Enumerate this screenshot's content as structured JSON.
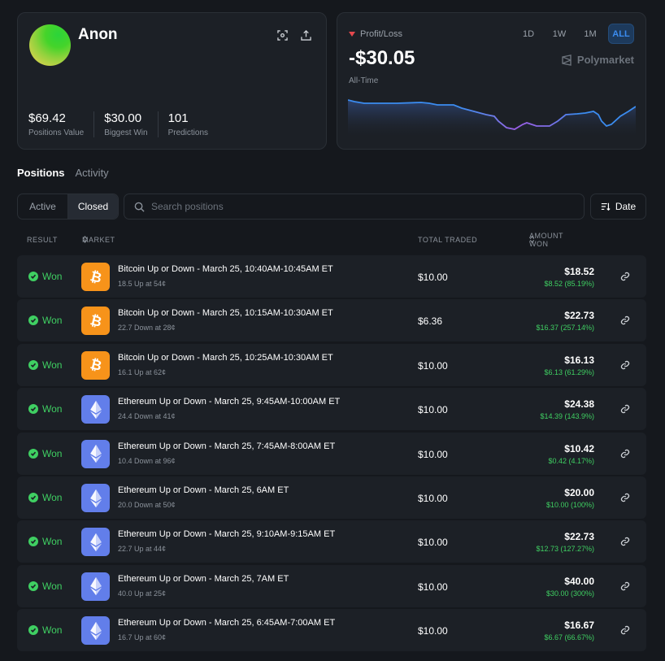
{
  "profile": {
    "username": "Anon",
    "stats": [
      {
        "value": "$69.42",
        "label": "Positions Value"
      },
      {
        "value": "$30.00",
        "label": "Biggest Win"
      },
      {
        "value": "101",
        "label": "Predictions"
      }
    ]
  },
  "pnl": {
    "label": "Profit/Loss",
    "value": "-$30.05",
    "period": "All-Time",
    "ranges": [
      "1D",
      "1W",
      "1M",
      "ALL"
    ],
    "active_range": "ALL",
    "brand": "Polymarket",
    "colors": {
      "down": "#e5484d",
      "line_start": "#3b8cf0",
      "line_mid": "#9b5de5"
    }
  },
  "tabs": [
    {
      "label": "Positions",
      "active": true
    },
    {
      "label": "Activity",
      "active": false
    }
  ],
  "filter": {
    "segments": [
      {
        "label": "Active"
      },
      {
        "label": "Closed"
      }
    ],
    "active_segment": "Closed",
    "search_placeholder": "Search positions",
    "date_label": "Date"
  },
  "table": {
    "headers": {
      "result": "RESULT",
      "market": "MARKET",
      "traded": "TOTAL TRADED",
      "won": "AMOUNT WON"
    },
    "rows": [
      {
        "result": "Won",
        "coin": "btc",
        "title": "Bitcoin Up or Down - March 25, 10:40AM-10:45AM ET",
        "sub": "18.5 Up at 54¢",
        "traded": "$10.00",
        "amount": "$18.52",
        "gain": "$8.52 (85.19%)"
      },
      {
        "result": "Won",
        "coin": "btc",
        "title": "Bitcoin Up or Down - March 25, 10:15AM-10:30AM ET",
        "sub": "22.7 Down at 28¢",
        "traded": "$6.36",
        "amount": "$22.73",
        "gain": "$16.37 (257.14%)"
      },
      {
        "result": "Won",
        "coin": "btc",
        "title": "Bitcoin Up or Down - March 25, 10:25AM-10:30AM ET",
        "sub": "16.1 Up at 62¢",
        "traded": "$10.00",
        "amount": "$16.13",
        "gain": "$6.13 (61.29%)"
      },
      {
        "result": "Won",
        "coin": "eth",
        "title": "Ethereum Up or Down - March 25, 9:45AM-10:00AM ET",
        "sub": "24.4 Down at 41¢",
        "traded": "$10.00",
        "amount": "$24.38",
        "gain": "$14.39 (143.9%)"
      },
      {
        "result": "Won",
        "coin": "eth",
        "title": "Ethereum Up or Down - March 25, 7:45AM-8:00AM ET",
        "sub": "10.4 Down at 96¢",
        "traded": "$10.00",
        "amount": "$10.42",
        "gain": "$0.42 (4.17%)"
      },
      {
        "result": "Won",
        "coin": "eth",
        "title": "Ethereum Up or Down - March 25, 6AM ET",
        "sub": "20.0 Down at 50¢",
        "traded": "$10.00",
        "amount": "$20.00",
        "gain": "$10.00 (100%)"
      },
      {
        "result": "Won",
        "coin": "eth",
        "title": "Ethereum Up or Down - March 25, 9:10AM-9:15AM ET",
        "sub": "22.7 Up at 44¢",
        "traded": "$10.00",
        "amount": "$22.73",
        "gain": "$12.73 (127.27%)"
      },
      {
        "result": "Won",
        "coin": "eth",
        "title": "Ethereum Up or Down - March 25, 7AM ET",
        "sub": "40.0 Up at 25¢",
        "traded": "$10.00",
        "amount": "$40.00",
        "gain": "$30.00 (300%)"
      },
      {
        "result": "Won",
        "coin": "eth",
        "title": "Ethereum Up or Down - March 25, 6:45AM-7:00AM ET",
        "sub": "16.7 Up at 60¢",
        "traded": "$10.00",
        "amount": "$16.67",
        "gain": "$6.67 (66.67%)"
      }
    ]
  }
}
